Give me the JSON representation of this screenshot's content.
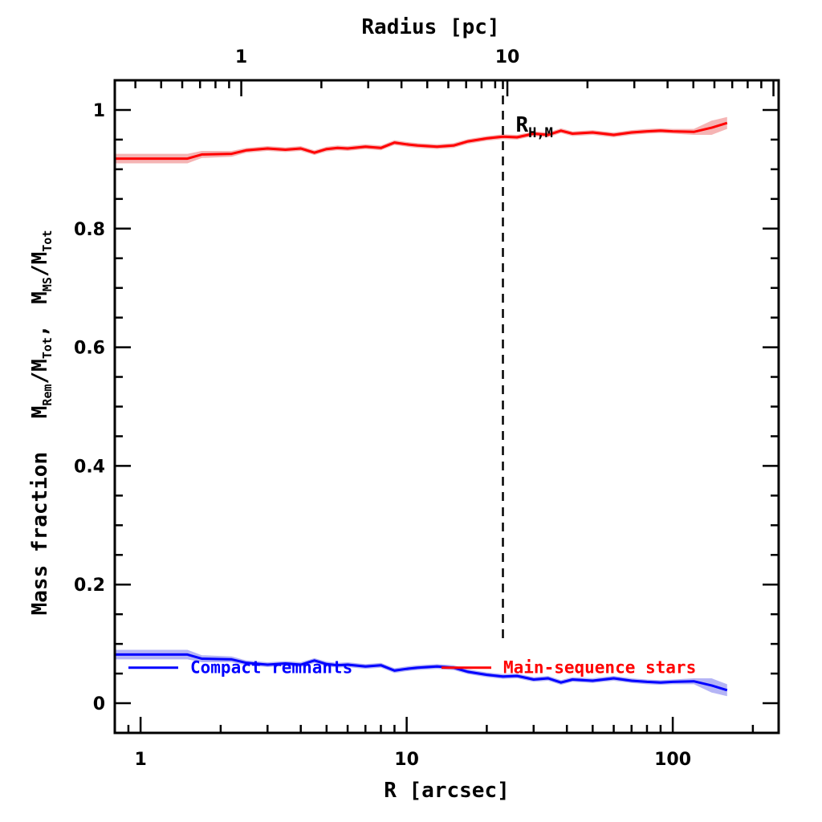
{
  "chart_data": {
    "type": "line",
    "title": "",
    "xlabel": "R [arcsec]",
    "x2label": "Radius [pc]",
    "ylabel_main": "Mass fraction",
    "ylabel_ratio1": {
      "M": "M",
      "num_sub": "Rem",
      "den": "M",
      "den_sub": "Tot"
    },
    "ylabel_sep": ",",
    "ylabel_ratio2": {
      "M": "M",
      "num_sub": "MS",
      "den": "M",
      "den_sub": "Tot"
    },
    "xscale": "log",
    "xlim": [
      0.8,
      250
    ],
    "ylim": [
      -0.05,
      1.05
    ],
    "x_ticks": [
      1,
      10,
      100
    ],
    "x_tick_labels": [
      "1",
      "10",
      "100"
    ],
    "x2_ticks_arcsec": [
      2.39,
      23.9
    ],
    "x2_tick_labels": [
      "1",
      "10"
    ],
    "y_ticks": [
      0,
      0.2,
      0.4,
      0.6,
      0.8,
      1
    ],
    "y_tick_labels": [
      "0",
      "0.2",
      "0.4",
      "0.6",
      "0.8",
      "1"
    ],
    "vline": {
      "x": 23,
      "label": "R",
      "label_sub": "H,M",
      "style": "dashed"
    },
    "legend_position": "bottom-center",
    "series": [
      {
        "name": "Compact remnants",
        "color": "#0000ff",
        "band_color": "#b4b4f5",
        "x": [
          0.8,
          1.5,
          1.7,
          2.2,
          2.5,
          3,
          3.5,
          4,
          4.5,
          5,
          5.5,
          6,
          7,
          8,
          9,
          10,
          11,
          13,
          15,
          17,
          20,
          23,
          26,
          30,
          34,
          38,
          42,
          50,
          60,
          70,
          80,
          90,
          100,
          120,
          140,
          160
        ],
        "values": [
          0.082,
          0.082,
          0.075,
          0.074,
          0.068,
          0.065,
          0.067,
          0.065,
          0.072,
          0.066,
          0.064,
          0.065,
          0.062,
          0.064,
          0.055,
          0.058,
          0.06,
          0.062,
          0.06,
          0.053,
          0.048,
          0.045,
          0.046,
          0.04,
          0.042,
          0.035,
          0.04,
          0.038,
          0.042,
          0.038,
          0.036,
          0.035,
          0.036,
          0.037,
          0.03,
          0.022
        ],
        "band_halfwidth": [
          0.008,
          0.008,
          0.006,
          0.005,
          0.004,
          0.004,
          0.004,
          0.004,
          0.004,
          0.004,
          0.004,
          0.004,
          0.004,
          0.004,
          0.004,
          0.004,
          0.004,
          0.004,
          0.004,
          0.004,
          0.004,
          0.004,
          0.004,
          0.004,
          0.004,
          0.004,
          0.004,
          0.004,
          0.004,
          0.004,
          0.004,
          0.004,
          0.004,
          0.005,
          0.012,
          0.01
        ]
      },
      {
        "name": "Main-sequence stars",
        "color": "#ff0000",
        "band_color": "#f5b4b4",
        "x": [
          0.8,
          1.5,
          1.7,
          2.2,
          2.5,
          3,
          3.5,
          4,
          4.5,
          5,
          5.5,
          6,
          7,
          8,
          9,
          10,
          11,
          13,
          15,
          17,
          20,
          23,
          26,
          30,
          34,
          38,
          42,
          50,
          60,
          70,
          80,
          90,
          100,
          120,
          140,
          160
        ],
        "values": [
          0.918,
          0.918,
          0.925,
          0.926,
          0.932,
          0.935,
          0.933,
          0.935,
          0.928,
          0.934,
          0.936,
          0.935,
          0.938,
          0.936,
          0.945,
          0.942,
          0.94,
          0.938,
          0.94,
          0.947,
          0.952,
          0.955,
          0.954,
          0.96,
          0.958,
          0.965,
          0.96,
          0.962,
          0.958,
          0.962,
          0.964,
          0.965,
          0.964,
          0.963,
          0.97,
          0.978
        ],
        "band_halfwidth": [
          0.008,
          0.008,
          0.006,
          0.005,
          0.004,
          0.004,
          0.004,
          0.004,
          0.004,
          0.004,
          0.004,
          0.004,
          0.004,
          0.004,
          0.004,
          0.004,
          0.004,
          0.004,
          0.004,
          0.004,
          0.004,
          0.004,
          0.004,
          0.004,
          0.004,
          0.004,
          0.004,
          0.004,
          0.004,
          0.004,
          0.004,
          0.004,
          0.004,
          0.005,
          0.012,
          0.01
        ]
      }
    ]
  }
}
